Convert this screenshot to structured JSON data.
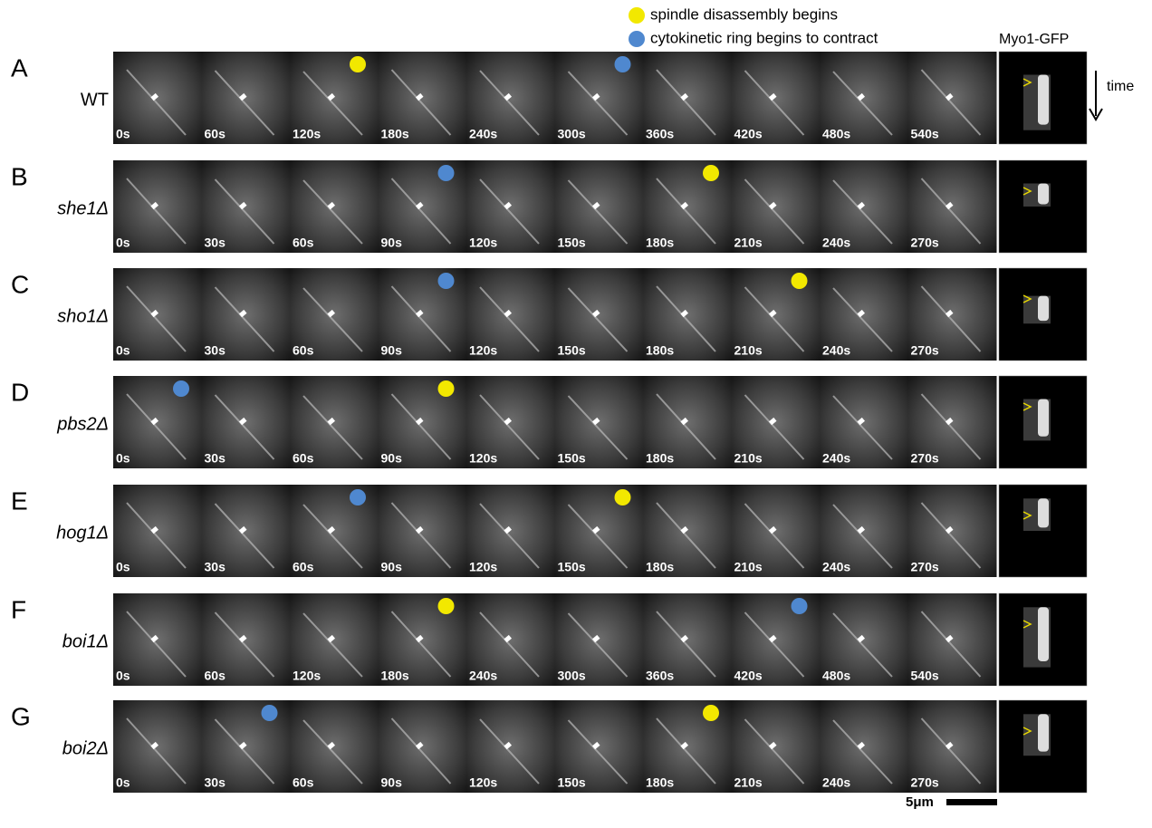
{
  "legend": [
    {
      "label": "spindle disassembly begins"
    },
    {
      "label": "cytokinetic ring begins to contract"
    }
  ],
  "kymograph_title": "Myo1-GFP",
  "time_label": "time",
  "scale_bar": "5μm",
  "rows": [
    {
      "letter": "A",
      "strain": "WT",
      "times": [
        "0s",
        "60s",
        "120s",
        "180s",
        "240s",
        "300s",
        "360s",
        "420s",
        "480s",
        "540s"
      ]
    },
    {
      "letter": "B",
      "strain": "she1Δ",
      "times": [
        "0s",
        "30s",
        "60s",
        "90s",
        "120s",
        "150s",
        "180s",
        "210s",
        "240s",
        "270s"
      ]
    },
    {
      "letter": "C",
      "strain": "sho1Δ",
      "times": [
        "0s",
        "30s",
        "60s",
        "90s",
        "120s",
        "150s",
        "180s",
        "210s",
        "240s",
        "270s"
      ]
    },
    {
      "letter": "D",
      "strain": "pbs2Δ",
      "times": [
        "0s",
        "30s",
        "60s",
        "90s",
        "120s",
        "150s",
        "180s",
        "210s",
        "240s",
        "270s"
      ]
    },
    {
      "letter": "E",
      "strain": "hog1Δ",
      "times": [
        "0s",
        "30s",
        "60s",
        "90s",
        "120s",
        "150s",
        "180s",
        "210s",
        "240s",
        "270s"
      ]
    },
    {
      "letter": "F",
      "strain": "boi1Δ",
      "times": [
        "0s",
        "60s",
        "120s",
        "180s",
        "240s",
        "300s",
        "360s",
        "420s",
        "480s",
        "540s"
      ]
    },
    {
      "letter": "G",
      "strain": "boi2Δ",
      "times": [
        "0s",
        "30s",
        "60s",
        "90s",
        "120s",
        "150s",
        "180s",
        "210s",
        "240s",
        "270s"
      ]
    }
  ]
}
